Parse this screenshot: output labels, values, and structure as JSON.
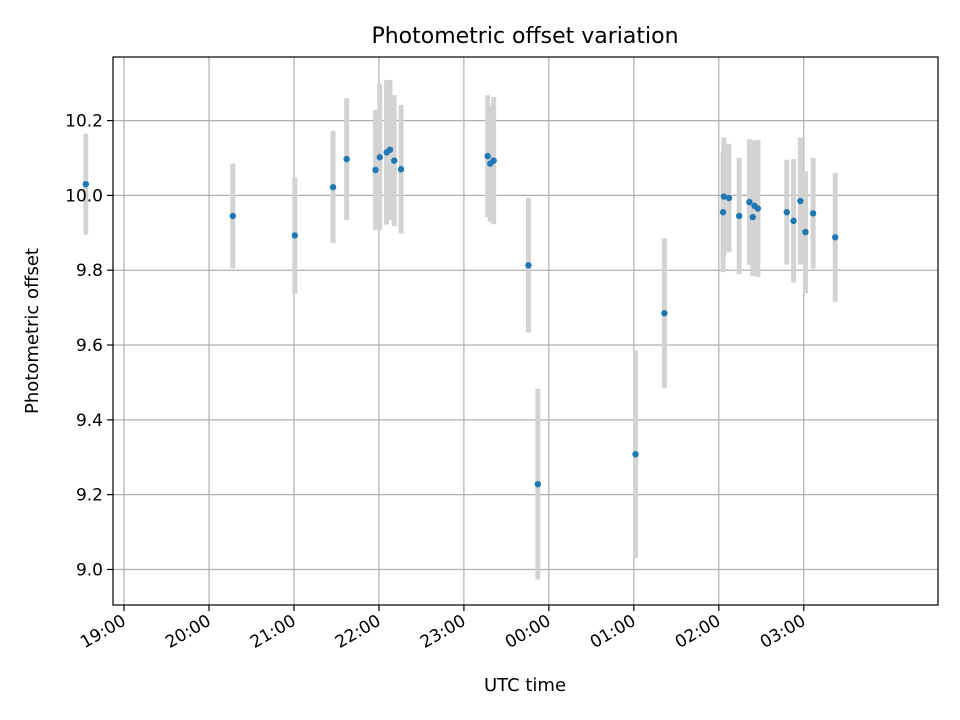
{
  "chart_data": {
    "type": "scatter",
    "title": "Photometric offset variation",
    "xlabel": "UTC time",
    "ylabel": "Photometric offset",
    "x_unit": "hours after 18:00 UTC",
    "xlim": [
      0.87,
      10.58
    ],
    "ylim": [
      8.905,
      10.37
    ],
    "x_ticks": [
      {
        "label": "19:00",
        "value": 1.0
      },
      {
        "label": "20:00",
        "value": 2.0
      },
      {
        "label": "21:00",
        "value": 3.0
      },
      {
        "label": "22:00",
        "value": 4.0
      },
      {
        "label": "23:00",
        "value": 5.0
      },
      {
        "label": "00:00",
        "value": 6.0
      },
      {
        "label": "01:00",
        "value": 7.0
      },
      {
        "label": "02:00",
        "value": 8.0
      },
      {
        "label": "03:00",
        "value": 9.0
      }
    ],
    "y_ticks": [
      {
        "label": "9.0",
        "value": 9.0
      },
      {
        "label": "9.2",
        "value": 9.2
      },
      {
        "label": "9.4",
        "value": 9.4
      },
      {
        "label": "9.6",
        "value": 9.6
      },
      {
        "label": "9.8",
        "value": 9.8
      },
      {
        "label": "10.0",
        "value": 10.0
      },
      {
        "label": "10.2",
        "value": 10.2
      }
    ],
    "grid": true,
    "point_color": "#1f77b4",
    "errorbar_color": "#d3d3d3",
    "series": [
      {
        "name": "offset",
        "points": [
          {
            "x": 0.55,
            "y": 10.03,
            "err": 0.135
          },
          {
            "x": 2.28,
            "y": 9.945,
            "err": 0.14
          },
          {
            "x": 3.01,
            "y": 9.893,
            "err": 0.155
          },
          {
            "x": 3.46,
            "y": 10.022,
            "err": 0.15
          },
          {
            "x": 3.62,
            "y": 10.097,
            "err": 0.163
          },
          {
            "x": 3.96,
            "y": 10.068,
            "err": 0.16
          },
          {
            "x": 4.01,
            "y": 10.102,
            "err": 0.195
          },
          {
            "x": 4.09,
            "y": 10.115,
            "err": 0.193
          },
          {
            "x": 4.13,
            "y": 10.122,
            "err": 0.187
          },
          {
            "x": 4.18,
            "y": 10.093,
            "err": 0.175
          },
          {
            "x": 4.26,
            "y": 10.07,
            "err": 0.172
          },
          {
            "x": 5.28,
            "y": 10.105,
            "err": 0.163
          },
          {
            "x": 5.31,
            "y": 10.085,
            "err": 0.155
          },
          {
            "x": 5.35,
            "y": 10.093,
            "err": 0.17
          },
          {
            "x": 5.76,
            "y": 9.813,
            "err": 0.18
          },
          {
            "x": 5.87,
            "y": 9.228,
            "err": 0.255
          },
          {
            "x": 7.02,
            "y": 9.308,
            "err": 0.277
          },
          {
            "x": 7.36,
            "y": 9.685,
            "err": 0.2
          },
          {
            "x": 8.05,
            "y": 9.955,
            "err": 0.16
          },
          {
            "x": 8.06,
            "y": 9.997,
            "err": 0.158
          },
          {
            "x": 8.12,
            "y": 9.993,
            "err": 0.145
          },
          {
            "x": 8.24,
            "y": 9.945,
            "err": 0.155
          },
          {
            "x": 8.36,
            "y": 9.982,
            "err": 0.168
          },
          {
            "x": 8.4,
            "y": 9.942,
            "err": 0.158
          },
          {
            "x": 8.42,
            "y": 9.972,
            "err": 0.175
          },
          {
            "x": 8.46,
            "y": 9.965,
            "err": 0.183
          },
          {
            "x": 8.8,
            "y": 9.955,
            "err": 0.14
          },
          {
            "x": 8.88,
            "y": 9.932,
            "err": 0.165
          },
          {
            "x": 8.96,
            "y": 9.985,
            "err": 0.17
          },
          {
            "x": 9.02,
            "y": 9.902,
            "err": 0.163
          },
          {
            "x": 9.11,
            "y": 9.952,
            "err": 0.148
          },
          {
            "x": 9.37,
            "y": 9.888,
            "err": 0.172
          }
        ]
      }
    ]
  }
}
